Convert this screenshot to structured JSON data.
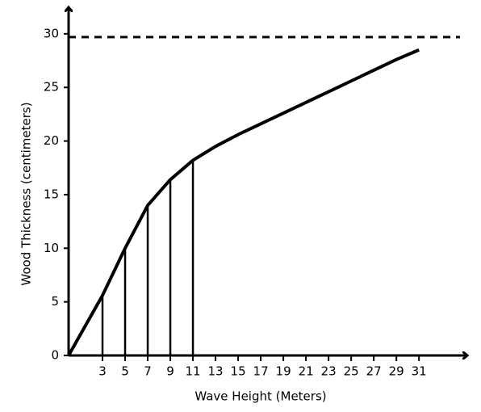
{
  "chart_data": {
    "type": "line",
    "x_label": "Wave Height (Meters)",
    "y_label": "Wood Thickness (centimeters)",
    "x": [
      0,
      3,
      5,
      7,
      9,
      11,
      13,
      15,
      17,
      19,
      21,
      23,
      25,
      27,
      29,
      31
    ],
    "series": [
      {
        "color": "#000000",
        "values": [
          0,
          5.6,
          10,
          14,
          16.4,
          18.2,
          19.5,
          20.6,
          21.6,
          22.6,
          23.6,
          24.6,
          25.6,
          26.6,
          27.6,
          28.5
        ]
      }
    ],
    "drop_lines_x": [
      3,
      5,
      7,
      9,
      11
    ],
    "reference_line": 29.7,
    "xlim": [
      0,
      35.2
    ],
    "ylim": [
      0,
      32.4
    ],
    "xticks": [
      3,
      5,
      7,
      9,
      11,
      13,
      15,
      17,
      19,
      21,
      23,
      25,
      27,
      29,
      31
    ],
    "yticks": [
      0,
      5,
      10,
      15,
      20,
      25,
      30
    ],
    "grid": false
  }
}
